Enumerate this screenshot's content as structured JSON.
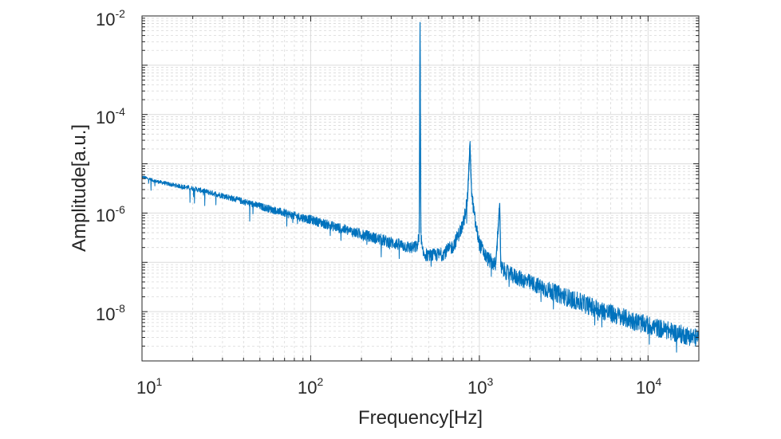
{
  "chart_data": {
    "type": "line",
    "title": "",
    "xlabel": "Frequency[Hz]",
    "ylabel": "Amplitude[a.u.]",
    "x_scale": "log",
    "y_scale": "log",
    "xlim": [
      10,
      20000
    ],
    "ylim": [
      1e-09,
      0.01
    ],
    "grid": true,
    "minor_grid": true,
    "x_ticks": [
      {
        "base": "10",
        "exp": "1",
        "value": 10
      },
      {
        "base": "10",
        "exp": "2",
        "value": 100
      },
      {
        "base": "10",
        "exp": "3",
        "value": 1000
      },
      {
        "base": "10",
        "exp": "4",
        "value": 10000
      }
    ],
    "y_ticks": [
      {
        "base": "10",
        "exp": "-8",
        "value": 1e-08
      },
      {
        "base": "10",
        "exp": "-6",
        "value": 1e-06
      },
      {
        "base": "10",
        "exp": "-4",
        "value": 0.0001
      },
      {
        "base": "10",
        "exp": "-2",
        "value": 0.01
      }
    ],
    "series": [
      {
        "color": "#0072BD",
        "points": [
          [
            10,
            5.5e-06
          ],
          [
            12,
            4.5e-06
          ],
          [
            15,
            3.8e-06
          ],
          [
            20,
            3.2e-06
          ],
          [
            30,
            2.3e-06
          ],
          [
            50,
            1.4e-06
          ],
          [
            80,
            9e-07
          ],
          [
            100,
            7.5e-07
          ],
          [
            150,
            5e-07
          ],
          [
            200,
            3.8e-07
          ],
          [
            300,
            2.6e-07
          ],
          [
            400,
            2e-07
          ],
          [
            430,
            2.2e-07
          ],
          [
            440,
            4e-07
          ],
          [
            445,
            0.0075
          ],
          [
            450,
            4e-07
          ],
          [
            460,
            1.6e-07
          ],
          [
            500,
            1.4e-07
          ],
          [
            600,
            1.5e-07
          ],
          [
            700,
            2.2e-07
          ],
          [
            800,
            6e-07
          ],
          [
            850,
            2e-06
          ],
          [
            880,
            2.5e-05
          ],
          [
            900,
            2.5e-06
          ],
          [
            950,
            6e-07
          ],
          [
            1000,
            2.5e-07
          ],
          [
            1100,
            1.3e-07
          ],
          [
            1250,
            9e-08
          ],
          [
            1320,
            1.6e-06
          ],
          [
            1340,
            8e-08
          ],
          [
            1500,
            6e-08
          ],
          [
            2000,
            4e-08
          ],
          [
            3000,
            2.3e-08
          ],
          [
            5000,
            1.2e-08
          ],
          [
            7000,
            8e-09
          ],
          [
            10000,
            5.5e-09
          ],
          [
            15000,
            3.8e-09
          ],
          [
            20000,
            3e-09
          ]
        ]
      }
    ]
  }
}
